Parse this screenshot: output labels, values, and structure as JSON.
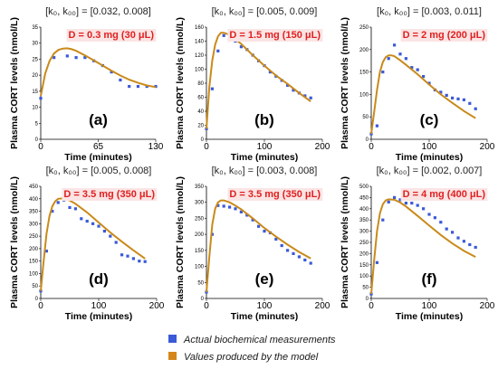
{
  "chart_data": [
    {
      "type": "scatter",
      "panel": "(a)",
      "title": "[k₀, k₀₀] = [0.032, 0.008]",
      "annotation": "D = 0.3 mg (30 μL)",
      "xlabel": "Time (minutes)",
      "ylabel": "Plasma CORT levels (nmol/L)",
      "xlim": [
        0,
        130
      ],
      "ylim": [
        0,
        35
      ],
      "xticks": [
        0,
        65,
        130
      ],
      "yticks": [
        0,
        5,
        10,
        15,
        20,
        25,
        30,
        35
      ],
      "series": [
        {
          "name": "Actual biochemical measurements",
          "x": [
            0,
            15,
            30,
            40,
            50,
            60,
            70,
            80,
            90,
            100,
            110,
            120,
            130
          ],
          "y": [
            12.8,
            25.5,
            26,
            25.5,
            25.5,
            24.5,
            23,
            21,
            18.5,
            16.5,
            16.5,
            16.5,
            16.5
          ]
        },
        {
          "name": "Values produced by the model",
          "x": [
            0,
            5,
            10,
            15,
            20,
            25,
            30,
            35,
            40,
            50,
            60,
            70,
            80,
            90,
            100,
            110,
            120,
            130
          ],
          "y": [
            13.5,
            20.5,
            24.5,
            26.8,
            27.9,
            28.3,
            28.4,
            28.1,
            27.6,
            26.2,
            24.6,
            23,
            21.4,
            19.9,
            18.6,
            17.6,
            16.8,
            16.3
          ]
        }
      ]
    },
    {
      "type": "scatter",
      "panel": "(b)",
      "title": "[k₀, k₀₀] = [0.005, 0.009]",
      "annotation": "D = 1.5 mg (150 μL)",
      "xlabel": "Time (minutes)",
      "ylabel": "Plasma CORT levels (nmol/L)",
      "xlim": [
        0,
        200
      ],
      "ylim": [
        0,
        160
      ],
      "xticks": [
        0,
        100,
        200
      ],
      "yticks": [
        0,
        20,
        40,
        60,
        80,
        100,
        120,
        140,
        160
      ],
      "series": [
        {
          "name": "Actual biochemical measurements",
          "x": [
            0,
            10,
            20,
            30,
            40,
            50,
            60,
            70,
            80,
            90,
            100,
            110,
            120,
            130,
            140,
            150,
            160,
            170,
            180
          ],
          "y": [
            15,
            72,
            126,
            148,
            150,
            140,
            132,
            128,
            120,
            112,
            105,
            96,
            90,
            84,
            77,
            70,
            66,
            62,
            59
          ]
        },
        {
          "name": "Values produced by the model",
          "x": [
            0,
            5,
            10,
            15,
            20,
            25,
            30,
            40,
            50,
            60,
            80,
            100,
            120,
            140,
            160,
            180
          ],
          "y": [
            15,
            75,
            112,
            135,
            147,
            152,
            152,
            149,
            143,
            136,
            120,
            105,
            91,
            79,
            66,
            54
          ]
        }
      ]
    },
    {
      "type": "scatter",
      "panel": "(c)",
      "title": "[k₀, k₀₀] = [0.003, 0.011]",
      "annotation": "D = 2 mg (200 μL)",
      "xlabel": "Time (minutes)",
      "ylabel": "Plasma CORT levels (nmol/L)",
      "xlim": [
        0,
        200
      ],
      "ylim": [
        0,
        250
      ],
      "xticks": [
        0,
        100,
        200
      ],
      "yticks": [
        0,
        50,
        100,
        150,
        200,
        250
      ],
      "series": [
        {
          "name": "Actual biochemical measurements",
          "x": [
            0,
            10,
            20,
            30,
            40,
            50,
            60,
            70,
            80,
            90,
            100,
            110,
            120,
            130,
            140,
            150,
            160,
            170,
            180
          ],
          "y": [
            12,
            30,
            150,
            180,
            210,
            190,
            180,
            160,
            155,
            140,
            125,
            110,
            105,
            98,
            92,
            90,
            88,
            80,
            68
          ]
        },
        {
          "name": "Values produced by the model",
          "x": [
            0,
            5,
            10,
            15,
            20,
            25,
            30,
            35,
            40,
            50,
            60,
            80,
            100,
            120,
            140,
            160,
            180
          ],
          "y": [
            12,
            60,
            110,
            150,
            172,
            183,
            187,
            187,
            185,
            176,
            166,
            145,
            122,
            100,
            81,
            63,
            47
          ]
        }
      ]
    },
    {
      "type": "scatter",
      "panel": "(d)",
      "title": "[k₀, k₀₀] = [0.005, 0.008]",
      "annotation": "D = 3.5 mg (350 μL)",
      "xlabel": "Time (minutes)",
      "ylabel": "Plasma CORT levels (nmol/L)",
      "xlim": [
        0,
        200
      ],
      "ylim": [
        0,
        450
      ],
      "xticks": [
        0,
        100,
        200
      ],
      "yticks": [
        0,
        50,
        100,
        150,
        200,
        250,
        300,
        350,
        400,
        450
      ],
      "series": [
        {
          "name": "Actual biochemical measurements",
          "x": [
            0,
            10,
            20,
            30,
            40,
            50,
            60,
            70,
            80,
            90,
            100,
            110,
            120,
            130,
            140,
            150,
            160,
            170,
            180
          ],
          "y": [
            30,
            190,
            350,
            385,
            395,
            365,
            360,
            320,
            310,
            300,
            290,
            270,
            250,
            225,
            175,
            170,
            160,
            150,
            148
          ]
        },
        {
          "name": "Values produced by the model",
          "x": [
            0,
            5,
            10,
            15,
            20,
            25,
            30,
            40,
            50,
            60,
            80,
            100,
            120,
            140,
            160,
            180
          ],
          "y": [
            30,
            150,
            260,
            330,
            370,
            390,
            400,
            402,
            393,
            380,
            345,
            305,
            265,
            228,
            193,
            160
          ]
        }
      ]
    },
    {
      "type": "scatter",
      "panel": "(e)",
      "title": "[k₀, k₀₀] = [0.003, 0.008]",
      "annotation": "D = 3.5 mg (350 μL)",
      "xlabel": "Time (minutes)",
      "ylabel": "Plasma CORT levels (nmol/L)",
      "xlim": [
        0,
        200
      ],
      "ylim": [
        0,
        350
      ],
      "xticks": [
        0,
        100,
        200
      ],
      "yticks": [
        0,
        50,
        100,
        150,
        200,
        250,
        300,
        350
      ],
      "series": [
        {
          "name": "Actual biochemical measurements",
          "x": [
            0,
            10,
            20,
            30,
            40,
            50,
            60,
            70,
            80,
            90,
            100,
            110,
            120,
            130,
            140,
            150,
            160,
            170,
            180
          ],
          "y": [
            20,
            200,
            290,
            288,
            285,
            280,
            270,
            260,
            245,
            225,
            210,
            205,
            185,
            165,
            150,
            140,
            130,
            120,
            110
          ]
        },
        {
          "name": "Values produced by the model",
          "x": [
            0,
            5,
            10,
            15,
            20,
            25,
            30,
            40,
            50,
            60,
            80,
            100,
            120,
            140,
            160,
            180
          ],
          "y": [
            20,
            130,
            230,
            280,
            300,
            306,
            306,
            300,
            290,
            278,
            250,
            220,
            193,
            168,
            145,
            125
          ]
        }
      ]
    },
    {
      "type": "scatter",
      "panel": "(f)",
      "title": "[k₀, k₀₀] = [0.002, 0.007]",
      "annotation": "D = 4 mg (400 μL)",
      "xlabel": "Time (minutes)",
      "ylabel": "Plasma CORT levels (nmol/L)",
      "xlim": [
        0,
        200
      ],
      "ylim": [
        0,
        500
      ],
      "xticks": [
        0,
        100,
        200
      ],
      "yticks": [
        0,
        50,
        100,
        150,
        200,
        250,
        300,
        350,
        400,
        450,
        500
      ],
      "series": [
        {
          "name": "Actual biochemical measurements",
          "x": [
            0,
            10,
            20,
            30,
            40,
            50,
            60,
            70,
            80,
            90,
            100,
            110,
            120,
            130,
            140,
            150,
            160,
            170,
            180
          ],
          "y": [
            20,
            160,
            350,
            430,
            450,
            440,
            425,
            425,
            415,
            400,
            375,
            360,
            340,
            310,
            295,
            270,
            255,
            240,
            228
          ]
        },
        {
          "name": "Values produced by the model",
          "x": [
            0,
            5,
            10,
            15,
            20,
            25,
            30,
            40,
            50,
            60,
            80,
            100,
            120,
            140,
            160,
            180
          ],
          "y": [
            20,
            170,
            300,
            380,
            420,
            437,
            442,
            440,
            428,
            410,
            368,
            325,
            283,
            245,
            212,
            185
          ]
        }
      ]
    }
  ],
  "legend": {
    "items": [
      {
        "label": "Actual biochemical measurements",
        "color": "#3a5ad8"
      },
      {
        "label": "Values produced by the model",
        "color": "#d4861a"
      }
    ]
  },
  "colors": {
    "measurement": "#3a5ad8",
    "model": "#c98a1a",
    "annotation": "#e02020",
    "annotation_bg": "#fbe4e4"
  }
}
